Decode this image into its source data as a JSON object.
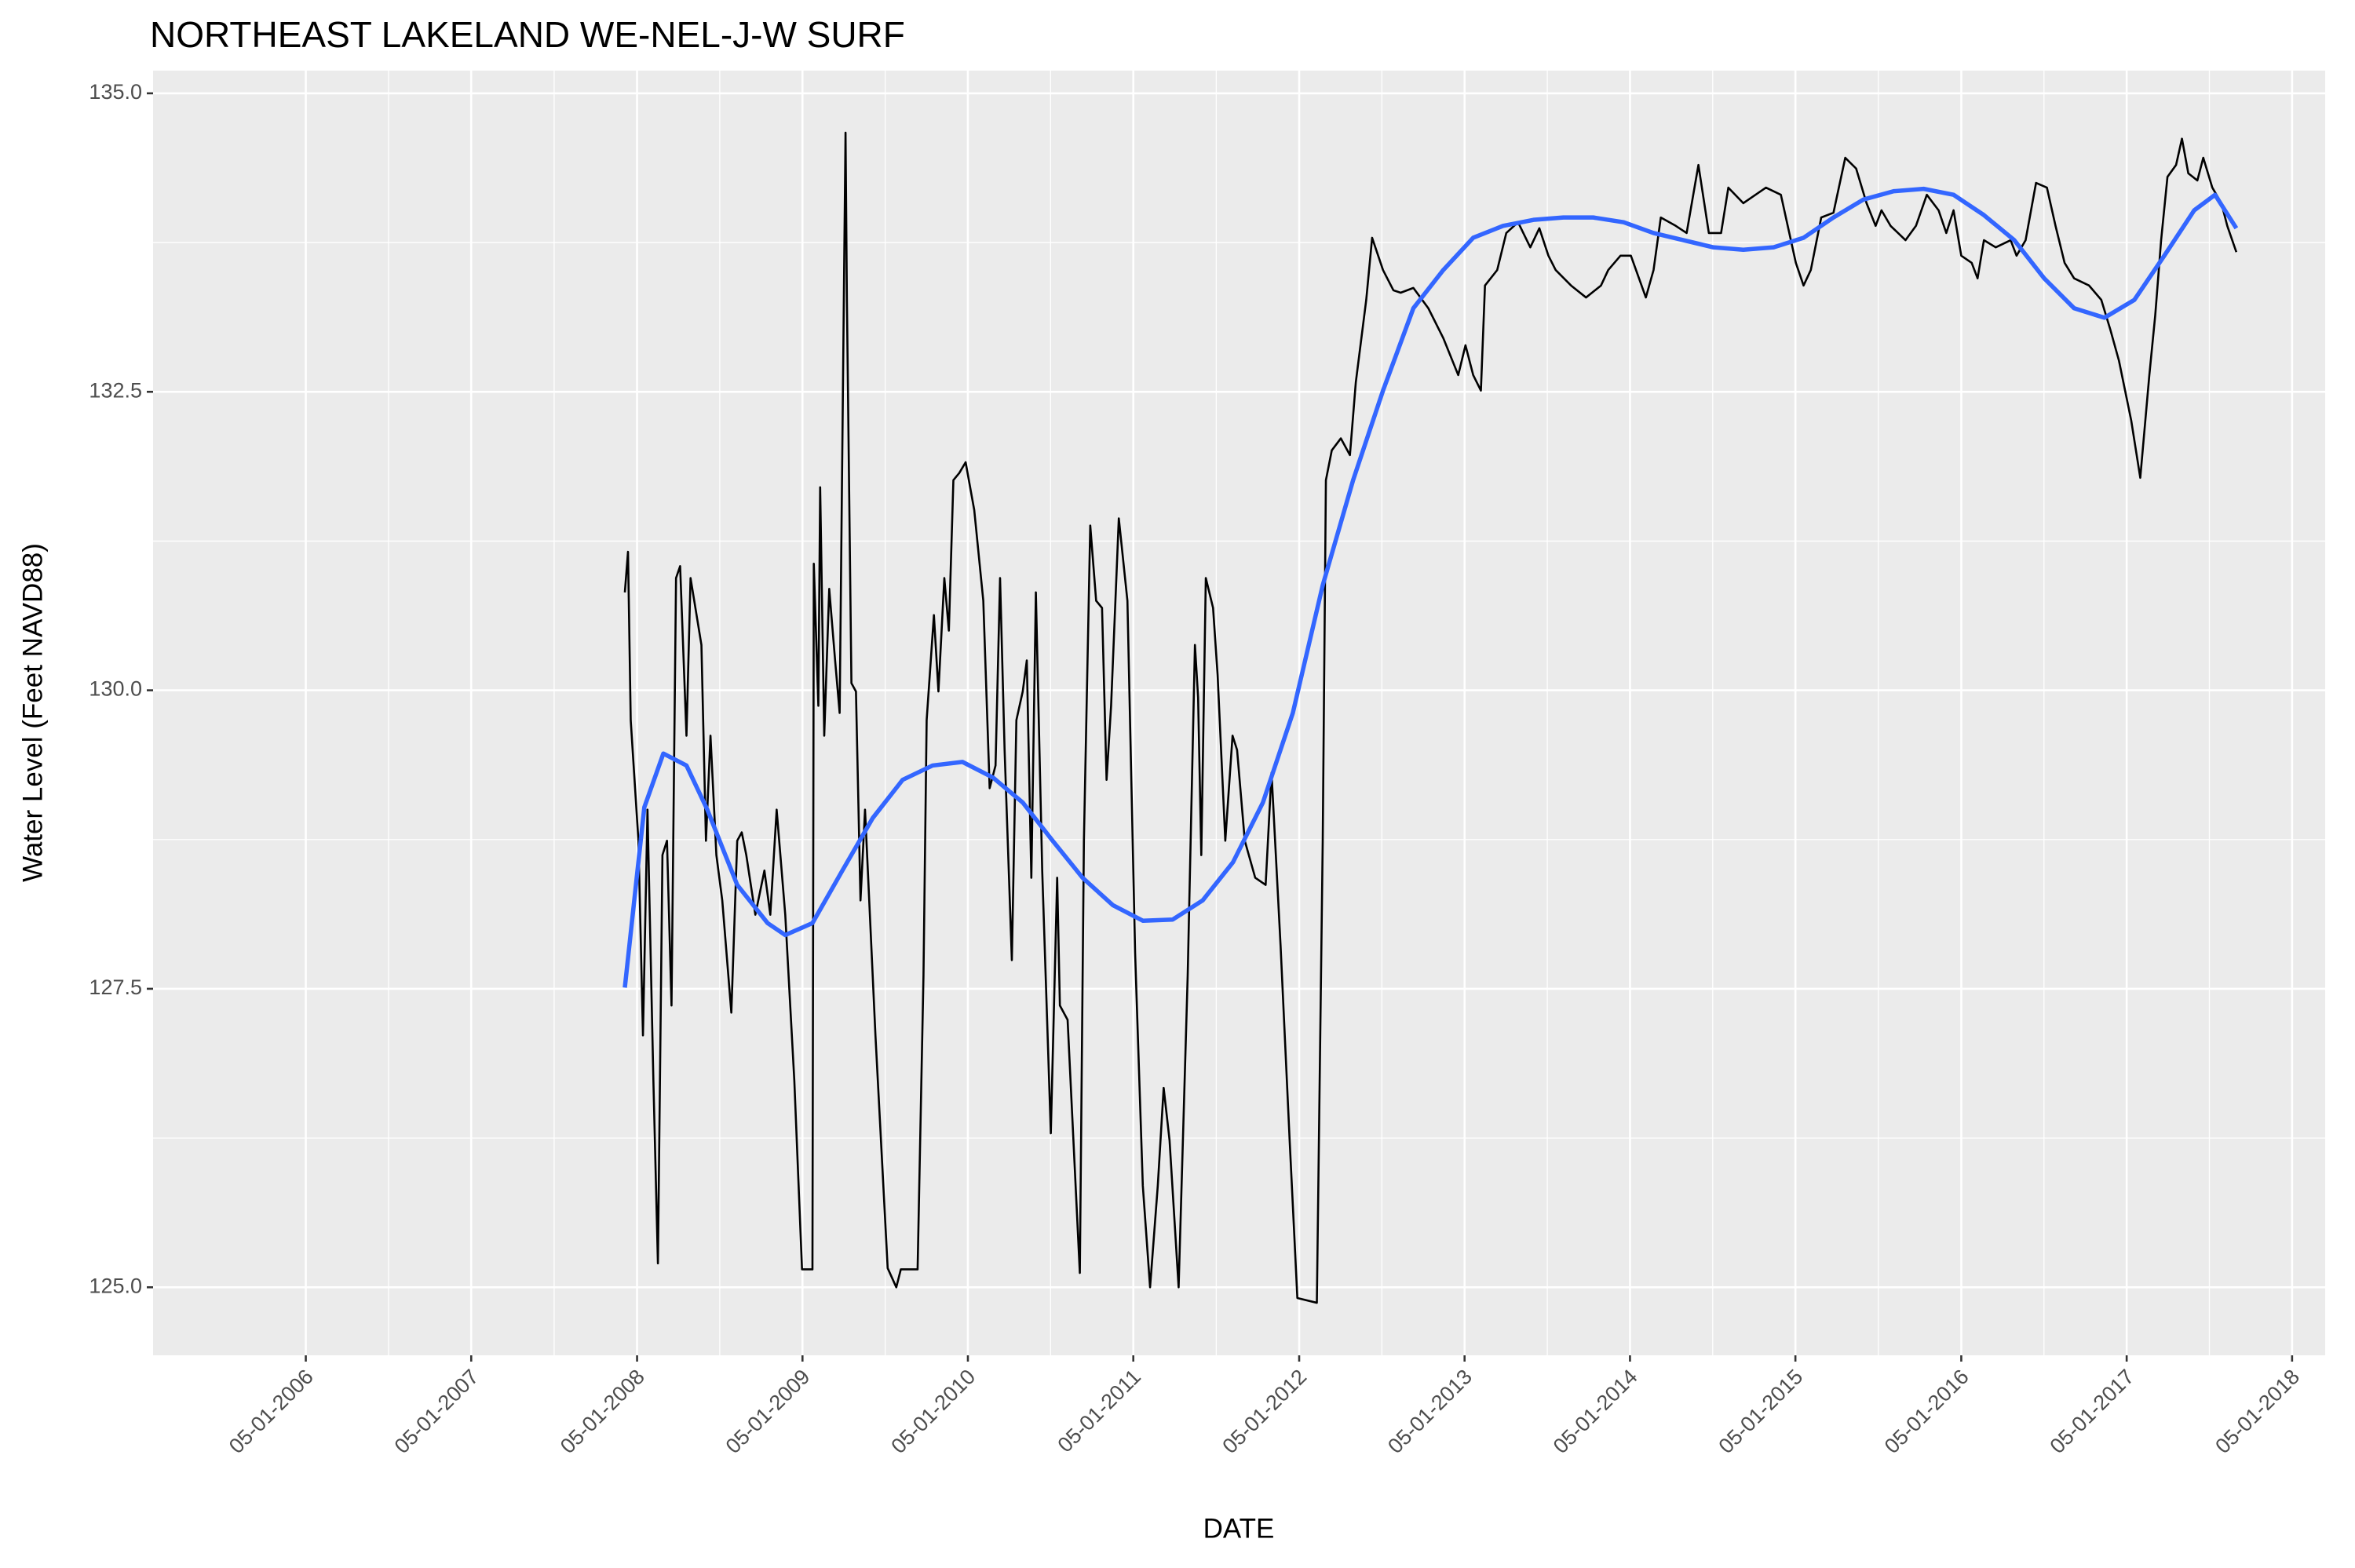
{
  "chart_data": {
    "type": "line",
    "title": "NORTHEAST LAKELAND WE-NEL-J-W SURF",
    "x_label": "DATE",
    "y_label": "Water Level (Feet NAVD88)",
    "xlim": [
      "2005-05-29",
      "2018-07-13"
    ],
    "xticks": [
      {
        "value": "2006-05-01",
        "label": "05-01-2006"
      },
      {
        "value": "2007-05-01",
        "label": "05-01-2007"
      },
      {
        "value": "2008-05-01",
        "label": "05-01-2008"
      },
      {
        "value": "2009-05-01",
        "label": "05-01-2009"
      },
      {
        "value": "2010-05-01",
        "label": "05-01-2010"
      },
      {
        "value": "2011-05-01",
        "label": "05-01-2011"
      },
      {
        "value": "2012-05-01",
        "label": "05-01-2012"
      },
      {
        "value": "2013-05-01",
        "label": "05-01-2013"
      },
      {
        "value": "2014-05-01",
        "label": "05-01-2014"
      },
      {
        "value": "2015-05-01",
        "label": "05-01-2015"
      },
      {
        "value": "2016-05-01",
        "label": "05-01-2016"
      },
      {
        "value": "2017-05-01",
        "label": "05-01-2017"
      },
      {
        "value": "2018-05-01",
        "label": "05-01-2018"
      }
    ],
    "ylim": [
      124.43,
      135.19
    ],
    "yticks": [
      {
        "value": 125,
        "label": "125.0"
      },
      127.5,
      {
        "value": 130,
        "label": "130.0"
      },
      132.5,
      {
        "value": 135,
        "label": "135.0"
      }
    ],
    "grid": true,
    "series": [
      {
        "color": "#000000",
        "x": [
          "2008-04-04",
          "2008-04-11",
          "2008-04-17",
          "2008-05-04",
          "2008-05-14",
          "2008-05-24",
          "2008-06-06",
          "2008-06-16",
          "2008-06-26",
          "2008-07-06",
          "2008-07-16",
          "2008-07-26",
          "2008-08-04",
          "2008-08-18",
          "2008-08-27",
          "2008-09-20",
          "2008-09-30",
          "2008-10-10",
          "2008-10-23",
          "2008-11-05",
          "2008-11-25",
          "2008-12-08",
          "2008-12-18",
          "2008-12-28",
          "2009-01-17",
          "2009-02-06",
          "2009-02-19",
          "2009-03-05",
          "2009-03-24",
          "2009-04-13",
          "2009-04-30",
          "2009-05-23",
          "2009-05-26",
          "2009-06-05",
          "2009-06-09",
          "2009-06-18",
          "2009-06-29",
          "2009-07-12",
          "2009-07-22",
          "2009-08-04",
          "2009-08-07",
          "2009-08-17",
          "2009-08-27",
          "2009-09-06",
          "2009-09-16",
          "2009-10-09",
          "2009-11-05",
          "2009-11-24",
          "2009-12-04",
          "2010-01-10",
          "2010-01-23",
          "2010-01-30",
          "2010-02-15",
          "2010-02-25",
          "2010-03-10",
          "2010-03-20",
          "2010-03-30",
          "2010-04-12",
          "2010-04-26",
          "2010-05-15",
          "2010-06-04",
          "2010-06-18",
          "2010-07-01",
          "2010-07-11",
          "2010-07-21",
          "2010-08-06",
          "2010-08-16",
          "2010-08-30",
          "2010-09-08",
          "2010-09-18",
          "2010-09-28",
          "2010-10-12",
          "2010-10-31",
          "2010-11-14",
          "2010-11-20",
          "2010-12-07",
          "2011-01-03",
          "2011-01-12",
          "2011-01-26",
          "2011-02-08",
          "2011-02-21",
          "2011-03-03",
          "2011-03-13",
          "2011-03-30",
          "2011-04-18",
          "2011-05-05",
          "2011-05-22",
          "2011-06-07",
          "2011-06-24",
          "2011-07-07",
          "2011-07-20",
          "2011-08-09",
          "2011-08-29",
          "2011-09-14",
          "2011-09-21",
          "2011-09-28",
          "2011-10-08",
          "2011-10-24",
          "2011-11-03",
          "2011-11-20",
          "2011-12-06",
          "2011-12-16",
          "2012-01-02",
          "2012-01-25",
          "2012-02-17",
          "2012-03-01",
          "2012-03-21",
          "2012-04-10",
          "2012-04-27",
          "2012-06-09",
          "2012-06-22",
          "2012-06-29",
          "2012-07-12",
          "2012-08-01",
          "2012-08-21",
          "2012-09-03",
          "2012-09-26",
          "2012-10-09",
          "2012-11-02",
          "2012-11-25",
          "2012-12-11",
          "2013-01-08",
          "2013-02-10",
          "2013-03-15",
          "2013-04-17",
          "2013-05-03",
          "2013-05-20",
          "2013-06-06",
          "2013-06-15",
          "2013-07-12",
          "2013-08-01",
          "2013-08-27",
          "2013-09-23",
          "2013-10-13",
          "2013-11-02",
          "2013-11-18",
          "2013-12-22",
          "2014-01-24",
          "2014-02-26",
          "2014-03-14",
          "2014-04-10",
          "2014-05-03",
          "2014-06-05",
          "2014-06-22",
          "2014-07-08",
          "2014-08-10",
          "2014-09-03",
          "2014-09-29",
          "2014-10-22",
          "2014-11-18",
          "2014-12-04",
          "2015-01-06",
          "2015-02-02",
          "2015-02-25",
          "2015-03-30",
          "2015-05-02",
          "2015-05-19",
          "2015-06-04",
          "2015-06-27",
          "2015-07-24",
          "2015-08-19",
          "2015-09-12",
          "2015-10-05",
          "2015-10-25",
          "2015-11-07",
          "2015-11-27",
          "2015-12-30",
          "2016-01-22",
          "2016-02-15",
          "2016-03-12",
          "2016-03-29",
          "2016-04-14",
          "2016-05-01",
          "2016-05-24",
          "2016-06-06",
          "2016-06-20",
          "2016-07-16",
          "2016-08-18",
          "2016-08-31",
          "2016-09-20",
          "2016-10-13",
          "2016-11-06",
          "2016-11-25",
          "2016-12-15",
          "2017-01-05",
          "2017-02-07",
          "2017-03-06",
          "2017-03-26",
          "2017-04-14",
          "2017-05-11",
          "2017-05-31",
          "2017-06-20",
          "2017-07-03",
          "2017-07-16",
          "2017-07-30",
          "2017-08-18",
          "2017-08-31",
          "2017-09-14",
          "2017-10-04",
          "2017-10-17",
          "2017-11-06",
          "2017-11-26",
          "2017-12-09",
          "2017-12-29"
        ],
        "values": [
          130.82,
          131.16,
          129.75,
          128.74,
          127.11,
          129.0,
          126.73,
          125.2,
          128.62,
          128.74,
          127.36,
          130.94,
          131.04,
          129.62,
          130.94,
          130.38,
          128.74,
          129.62,
          128.62,
          128.24,
          127.3,
          128.74,
          128.81,
          128.62,
          128.12,
          128.49,
          128.12,
          129.0,
          128.12,
          126.73,
          125.15,
          125.15,
          131.06,
          129.87,
          131.7,
          129.62,
          130.85,
          130.25,
          129.81,
          134.67,
          133.27,
          130.06,
          129.99,
          128.24,
          129.0,
          127.11,
          125.16,
          125.0,
          125.15,
          125.15,
          127.61,
          129.75,
          130.63,
          129.99,
          130.94,
          130.5,
          131.76,
          131.82,
          131.91,
          131.51,
          130.75,
          129.18,
          129.37,
          130.94,
          129.5,
          127.74,
          129.75,
          129.99,
          130.25,
          128.43,
          130.82,
          128.49,
          126.29,
          128.43,
          127.36,
          127.24,
          125.12,
          128.74,
          131.38,
          130.75,
          130.69,
          129.25,
          129.87,
          131.44,
          130.75,
          127.8,
          125.85,
          125.0,
          125.85,
          126.67,
          126.23,
          125.0,
          127.61,
          130.38,
          129.94,
          128.62,
          130.94,
          130.69,
          130.13,
          128.74,
          129.62,
          129.5,
          128.74,
          128.43,
          128.37,
          129.31,
          127.86,
          126.23,
          124.91,
          124.87,
          128.74,
          131.76,
          132.01,
          132.11,
          131.97,
          132.58,
          133.27,
          133.79,
          133.52,
          133.35,
          133.33,
          133.37,
          133.2,
          132.95,
          132.64,
          132.89,
          132.64,
          132.51,
          133.39,
          133.52,
          133.83,
          133.92,
          133.71,
          133.87,
          133.64,
          133.52,
          133.39,
          133.29,
          133.39,
          133.52,
          133.64,
          133.64,
          133.29,
          133.52,
          133.96,
          133.89,
          133.83,
          134.4,
          133.83,
          133.83,
          134.21,
          134.08,
          134.15,
          134.21,
          134.15,
          133.58,
          133.39,
          133.52,
          133.96,
          134.0,
          134.46,
          134.37,
          134.08,
          133.89,
          134.02,
          133.89,
          133.77,
          133.89,
          134.15,
          134.02,
          133.83,
          134.02,
          133.64,
          133.58,
          133.45,
          133.77,
          133.71,
          133.77,
          133.64,
          133.77,
          134.25,
          134.21,
          133.89,
          133.58,
          133.45,
          133.39,
          133.27,
          133.02,
          132.76,
          132.26,
          131.78,
          132.64,
          133.14,
          133.77,
          134.3,
          134.4,
          134.62,
          134.33,
          134.27,
          134.46,
          134.21,
          134.08,
          133.89,
          133.67
        ]
      },
      {
        "color": "#3366ff",
        "x": [
          "2008-04-04",
          "2008-05-17",
          "2008-06-28",
          "2008-08-18",
          "2008-10-03",
          "2008-12-08",
          "2009-02-13",
          "2009-03-24",
          "2009-05-23",
          "2009-07-28",
          "2009-10-03",
          "2009-12-08",
          "2010-02-12",
          "2010-04-19",
          "2010-06-25",
          "2010-08-30",
          "2010-11-04",
          "2011-01-09",
          "2011-03-17",
          "2011-05-22",
          "2011-07-27",
          "2011-10-01",
          "2011-12-07",
          "2012-02-11",
          "2012-04-17",
          "2012-06-22",
          "2012-08-28",
          "2012-11-02",
          "2013-01-08",
          "2013-03-15",
          "2013-05-20",
          "2013-07-25",
          "2013-09-30",
          "2013-12-05",
          "2014-02-09",
          "2014-04-17",
          "2014-06-22",
          "2014-08-27",
          "2014-11-01",
          "2015-01-06",
          "2015-03-14",
          "2015-05-19",
          "2015-07-24",
          "2015-09-28",
          "2015-12-04",
          "2016-02-08",
          "2016-04-14",
          "2016-06-20",
          "2016-08-26",
          "2016-10-31",
          "2017-01-05",
          "2017-03-13",
          "2017-05-18",
          "2017-07-23",
          "2017-09-27",
          "2017-11-12",
          "2017-12-29"
        ],
        "values": [
          127.51,
          129.02,
          129.47,
          129.37,
          129.0,
          128.37,
          128.05,
          127.95,
          128.05,
          128.49,
          128.93,
          129.25,
          129.37,
          129.4,
          129.27,
          129.06,
          128.74,
          128.43,
          128.2,
          128.07,
          128.08,
          128.24,
          128.56,
          129.06,
          129.81,
          130.88,
          131.76,
          132.51,
          133.2,
          133.52,
          133.79,
          133.89,
          133.94,
          133.96,
          133.96,
          133.92,
          133.83,
          133.77,
          133.71,
          133.69,
          133.71,
          133.79,
          133.96,
          134.11,
          134.18,
          134.2,
          134.15,
          133.98,
          133.77,
          133.45,
          133.2,
          133.12,
          133.27,
          133.64,
          134.02,
          134.15,
          133.87
        ]
      }
    ]
  }
}
